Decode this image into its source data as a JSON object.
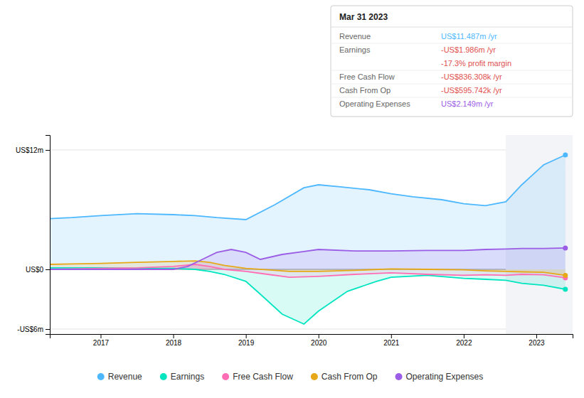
{
  "chart_data": {
    "type": "area",
    "xlim": [
      2016.3,
      2023.5
    ],
    "xticks": [
      2017,
      2018,
      2019,
      2020,
      2021,
      2022,
      2023
    ],
    "ylim": [
      -6.5,
      13.5
    ],
    "yticks": [
      {
        "value": 12,
        "label": "US$12m"
      },
      {
        "value": 0,
        "label": "US$0"
      },
      {
        "value": -6,
        "label": "-US$6m"
      }
    ],
    "grid": true,
    "legend": "bottom",
    "highlight_start": 2022.58,
    "series": [
      {
        "name": "Revenue",
        "color": "#4db8ff",
        "x": [
          2016.3,
          2016.6,
          2017.0,
          2017.5,
          2018.0,
          2018.3,
          2018.6,
          2019.0,
          2019.4,
          2019.8,
          2020.0,
          2020.3,
          2020.7,
          2021.0,
          2021.3,
          2021.7,
          2022.0,
          2022.3,
          2022.58,
          2022.8,
          2023.1,
          2023.4
        ],
        "values": [
          5.1,
          5.2,
          5.4,
          5.6,
          5.5,
          5.4,
          5.2,
          5.0,
          6.5,
          8.2,
          8.5,
          8.3,
          8.0,
          7.6,
          7.3,
          7.0,
          6.6,
          6.4,
          6.8,
          8.5,
          10.5,
          11.5
        ]
      },
      {
        "name": "Earnings",
        "color": "#00e5c0",
        "x": [
          2016.3,
          2016.6,
          2017.0,
          2017.5,
          2018.0,
          2018.3,
          2018.5,
          2018.7,
          2019.0,
          2019.2,
          2019.5,
          2019.8,
          2020.0,
          2020.4,
          2020.8,
          2021.0,
          2021.5,
          2022.0,
          2022.3,
          2022.58,
          2022.8,
          2023.1,
          2023.4
        ],
        "values": [
          0.15,
          0.15,
          0.15,
          0.1,
          0.1,
          0.0,
          -0.2,
          -0.5,
          -1.2,
          -2.5,
          -4.5,
          -5.5,
          -4.2,
          -2.2,
          -1.2,
          -0.8,
          -0.6,
          -0.9,
          -1.0,
          -1.1,
          -1.4,
          -1.6,
          -2.0
        ]
      },
      {
        "name": "Free Cash Flow",
        "color": "#ff6eb4",
        "x": [
          2016.3,
          2016.6,
          2017.0,
          2017.5,
          2018.0,
          2018.3,
          2018.5,
          2018.7,
          2019.0,
          2019.3,
          2019.6,
          2020.0,
          2020.5,
          2021.0,
          2021.5,
          2022.0,
          2022.3,
          2022.58,
          2022.8,
          2023.1,
          2023.4
        ],
        "values": [
          0.0,
          0.05,
          0.1,
          0.15,
          0.3,
          0.5,
          0.3,
          0.0,
          -0.2,
          -0.5,
          -0.8,
          -0.7,
          -0.5,
          -0.35,
          -0.5,
          -0.6,
          -0.55,
          -0.6,
          -0.5,
          -0.55,
          -0.85
        ]
      },
      {
        "name": "Cash From Op",
        "color": "#e6a817",
        "x": [
          2016.3,
          2016.6,
          2017.0,
          2017.5,
          2018.0,
          2018.3,
          2018.5,
          2018.7,
          2019.0,
          2019.3,
          2019.6,
          2020.0,
          2020.5,
          2021.0,
          2021.5,
          2022.0,
          2022.3,
          2022.58,
          2022.8,
          2023.1,
          2023.4
        ],
        "values": [
          0.5,
          0.55,
          0.6,
          0.7,
          0.8,
          0.85,
          0.7,
          0.4,
          0.1,
          -0.05,
          -0.2,
          -0.2,
          -0.1,
          0.05,
          0.0,
          -0.05,
          -0.15,
          -0.2,
          -0.25,
          -0.3,
          -0.6
        ]
      },
      {
        "name": "Operating Expenses",
        "color": "#9b5de5",
        "x": [
          2016.3,
          2016.6,
          2017.0,
          2017.5,
          2018.0,
          2018.2,
          2018.4,
          2018.6,
          2018.8,
          2019.0,
          2019.2,
          2019.5,
          2019.8,
          2020.0,
          2020.5,
          2021.0,
          2021.5,
          2022.0,
          2022.3,
          2022.58,
          2022.8,
          2023.1,
          2023.4
        ],
        "values": [
          0.0,
          0.0,
          0.0,
          0.0,
          0.0,
          0.3,
          1.0,
          1.7,
          2.0,
          1.7,
          1.0,
          1.5,
          1.8,
          2.0,
          1.85,
          1.85,
          1.9,
          1.9,
          2.0,
          2.05,
          2.1,
          2.1,
          2.15
        ]
      }
    ],
    "annotation": {
      "title": "Mar 31 2023",
      "rows": [
        {
          "label": "Revenue",
          "value": "US$11.487m /yr",
          "color": "#4db8ff"
        },
        {
          "label": "Earnings",
          "value": "-US$1.986m /yr",
          "color": "#e05050"
        },
        {
          "value": "-17.3% profit margin",
          "color": "#e05050"
        },
        {
          "label": "Free Cash Flow",
          "value": "-US$836.308k /yr",
          "color": "#e05050"
        },
        {
          "label": "Cash From Op",
          "value": "-US$595.742k /yr",
          "color": "#e05050"
        },
        {
          "label": "Operating Expenses",
          "value": "US$2.149m /yr",
          "color": "#9b5de5"
        }
      ]
    }
  }
}
